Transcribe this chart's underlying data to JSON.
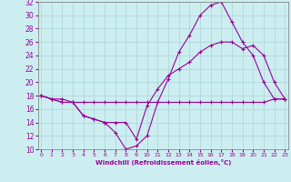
{
  "xlabel": "Windchill (Refroidissement éolien,°C)",
  "bg_color": "#cceef0",
  "grid_color": "#aad4d8",
  "line_color": "#990099",
  "xmin": 0,
  "xmax": 23,
  "ymin": 10,
  "ymax": 32,
  "yticks": [
    10,
    12,
    14,
    16,
    18,
    20,
    22,
    24,
    26,
    28,
    30,
    32
  ],
  "xticks": [
    0,
    1,
    2,
    3,
    4,
    5,
    6,
    7,
    8,
    9,
    10,
    11,
    12,
    13,
    14,
    15,
    16,
    17,
    18,
    19,
    20,
    21,
    22,
    23
  ],
  "series": [
    {
      "x": [
        0,
        1,
        2,
        3,
        4,
        5,
        6,
        7,
        8,
        9,
        10,
        11,
        12,
        13,
        14,
        15,
        16,
        17,
        18,
        19,
        20,
        21,
        22,
        23
      ],
      "y": [
        18,
        17.5,
        17.5,
        17,
        17,
        17,
        17,
        17,
        17,
        17,
        17,
        17,
        17,
        17,
        17,
        17,
        17,
        17,
        17,
        17,
        17,
        17,
        17.5,
        17.5
      ]
    },
    {
      "x": [
        0,
        1,
        2,
        3,
        4,
        5,
        6,
        7,
        8,
        9,
        10,
        11,
        12,
        13,
        14,
        15,
        16,
        17,
        18,
        19,
        20,
        21,
        22,
        23
      ],
      "y": [
        18,
        17.5,
        17,
        17,
        15,
        14.5,
        14,
        12.5,
        10,
        10.5,
        12,
        17,
        20.5,
        24.5,
        27,
        30,
        31.5,
        32,
        29,
        26,
        24,
        20,
        17.5,
        17.5
      ]
    },
    {
      "x": [
        0,
        1,
        2,
        3,
        4,
        5,
        6,
        7,
        8,
        9,
        10,
        11,
        12,
        13,
        14,
        15,
        16,
        17,
        18,
        19,
        20,
        21,
        22,
        23
      ],
      "y": [
        18,
        17.5,
        17,
        17,
        15,
        14.5,
        14,
        14,
        14,
        11.5,
        16.5,
        19,
        21,
        22,
        23,
        24.5,
        25.5,
        26,
        26,
        25,
        25.5,
        24,
        20,
        17.5
      ]
    }
  ]
}
